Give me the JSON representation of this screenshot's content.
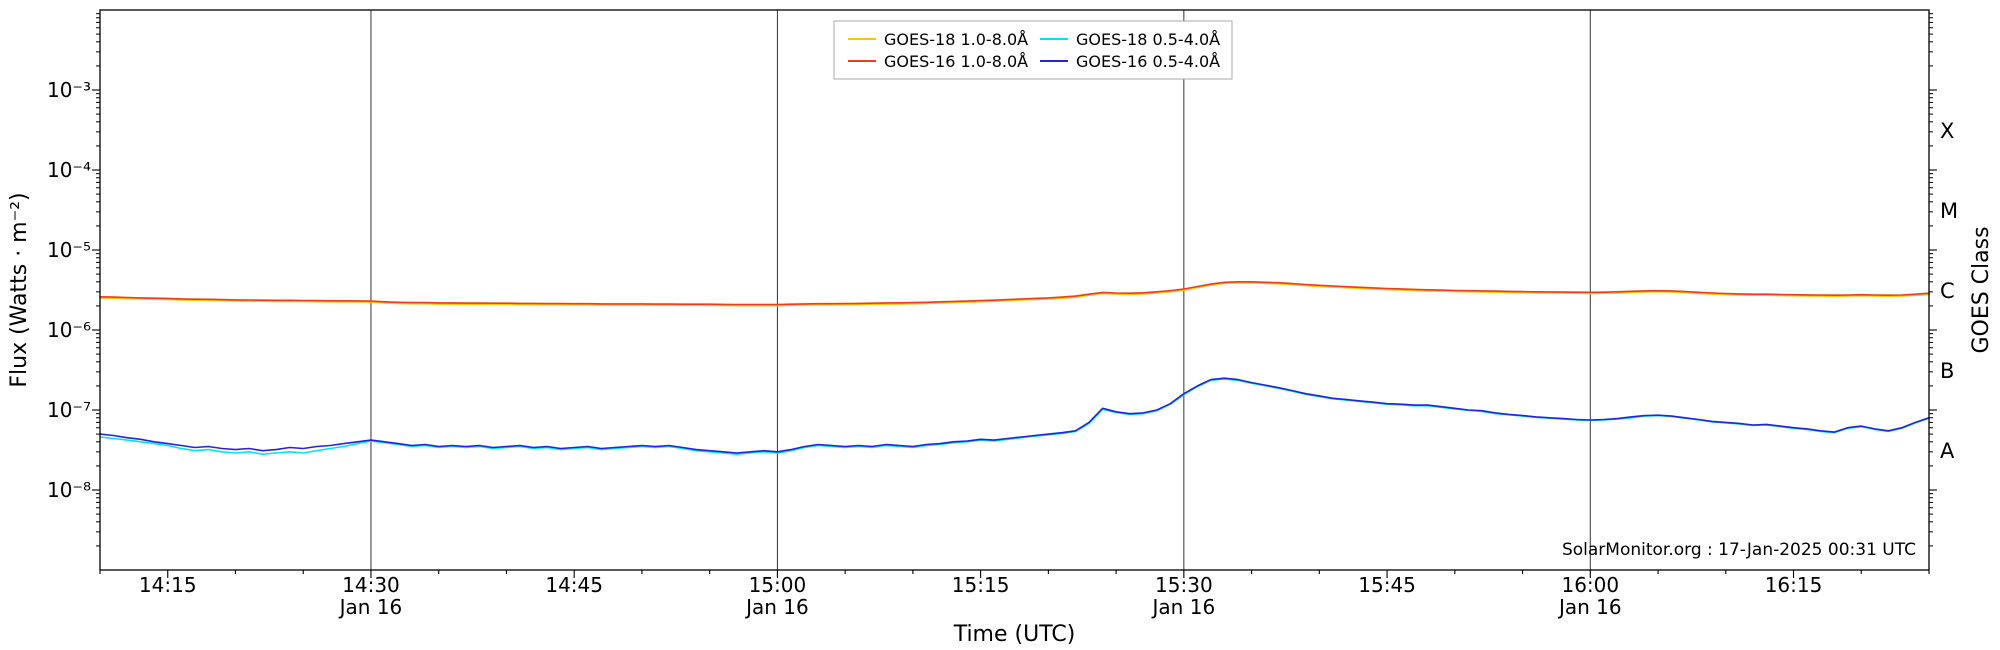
{
  "chart_data": {
    "type": "line",
    "title": "",
    "xlabel": "Time (UTC)",
    "ylabel": "Flux (Watts · m⁻²)",
    "right_axis_label": "GOES Class",
    "watermark": "SolarMonitor.org : 17-Jan-2025 00:31 UTC",
    "x_axis": {
      "start_minutes": 850,
      "end_minutes": 985,
      "minor_tick_step_minutes": 5,
      "gridline_minutes": [
        870,
        900,
        930,
        960
      ],
      "major_ticks": [
        {
          "minutes": 855,
          "label": "14:15",
          "sublabel": ""
        },
        {
          "minutes": 870,
          "label": "14:30",
          "sublabel": "Jan 16"
        },
        {
          "minutes": 885,
          "label": "14:45",
          "sublabel": ""
        },
        {
          "minutes": 900,
          "label": "15:00",
          "sublabel": "Jan 16"
        },
        {
          "minutes": 915,
          "label": "15:15",
          "sublabel": ""
        },
        {
          "minutes": 930,
          "label": "15:30",
          "sublabel": "Jan 16"
        },
        {
          "minutes": 945,
          "label": "15:45",
          "sublabel": ""
        },
        {
          "minutes": 960,
          "label": "16:00",
          "sublabel": "Jan 16"
        },
        {
          "minutes": 975,
          "label": "16:15",
          "sublabel": ""
        }
      ]
    },
    "y_axis": {
      "log_min_exp": -9,
      "log_max_exp": -2,
      "ticks": [
        {
          "exp": -3,
          "label": "10⁻³"
        },
        {
          "exp": -4,
          "label": "10⁻⁴"
        },
        {
          "exp": -5,
          "label": "10⁻⁵"
        },
        {
          "exp": -6,
          "label": "10⁻⁶"
        },
        {
          "exp": -7,
          "label": "10⁻⁷"
        },
        {
          "exp": -8,
          "label": "10⁻⁸"
        }
      ]
    },
    "goes_classes": [
      {
        "label": "X",
        "center_exp": -3.5
      },
      {
        "label": "M",
        "center_exp": -4.5
      },
      {
        "label": "C",
        "center_exp": -5.5
      },
      {
        "label": "B",
        "center_exp": -6.5
      },
      {
        "label": "A",
        "center_exp": -7.5
      }
    ],
    "sample_start_minutes": 850,
    "sample_step_minutes": 1,
    "legend_columns": [
      [
        0,
        2
      ],
      [
        1,
        3
      ]
    ],
    "series": [
      {
        "name": "GOES-18 1.0-8.0Å",
        "color": "#ffc400",
        "scale": 1e-06,
        "values": [
          2.52,
          2.5,
          2.47,
          2.44,
          2.43,
          2.41,
          2.38,
          2.36,
          2.35,
          2.33,
          2.31,
          2.3,
          2.29,
          2.28,
          2.28,
          2.27,
          2.26,
          2.25,
          2.25,
          2.24,
          2.23,
          2.18,
          2.15,
          2.13,
          2.13,
          2.11,
          2.11,
          2.1,
          2.1,
          2.1,
          2.1,
          2.09,
          2.09,
          2.08,
          2.08,
          2.07,
          2.07,
          2.06,
          2.06,
          2.06,
          2.06,
          2.05,
          2.05,
          2.04,
          2.04,
          2.04,
          2.03,
          2.02,
          2.02,
          2.02,
          2.02,
          2.04,
          2.06,
          2.07,
          2.07,
          2.08,
          2.09,
          2.1,
          2.11,
          2.12,
          2.13,
          2.15,
          2.18,
          2.21,
          2.23,
          2.26,
          2.29,
          2.33,
          2.37,
          2.41,
          2.44,
          2.5,
          2.57,
          2.72,
          2.86,
          2.81,
          2.79,
          2.83,
          2.91,
          3.01,
          3.15,
          3.4,
          3.64,
          3.83,
          3.88,
          3.88,
          3.83,
          3.78,
          3.69,
          3.59,
          3.51,
          3.44,
          3.38,
          3.32,
          3.26,
          3.2,
          3.16,
          3.12,
          3.08,
          3.06,
          3.03,
          3.01,
          2.99,
          2.97,
          2.95,
          2.93,
          2.91,
          2.9,
          2.89,
          2.88,
          2.87,
          2.88,
          2.91,
          2.96,
          2.99,
          3.01,
          2.99,
          2.93,
          2.87,
          2.81,
          2.77,
          2.74,
          2.72,
          2.72,
          2.7,
          2.68,
          2.67,
          2.66,
          2.64,
          2.66,
          2.68,
          2.66,
          2.64,
          2.66,
          2.72,
          2.79
        ]
      },
      {
        "name": "GOES-18 0.5-4.0Å",
        "color": "#00e5f6",
        "scale": 1e-08,
        "values": [
          4.6,
          4.4,
          4.2,
          4.0,
          3.8,
          3.6,
          3.3,
          3.1,
          3.2,
          3.0,
          2.9,
          3.0,
          2.8,
          2.9,
          3.0,
          2.9,
          3.1,
          3.3,
          3.5,
          3.8,
          4.1,
          3.9,
          3.7,
          3.5,
          3.6,
          3.4,
          3.5,
          3.4,
          3.5,
          3.3,
          3.4,
          3.5,
          3.3,
          3.4,
          3.2,
          3.3,
          3.4,
          3.2,
          3.3,
          3.4,
          3.5,
          3.4,
          3.5,
          3.3,
          3.1,
          3.0,
          2.9,
          2.8,
          2.9,
          3.0,
          2.9,
          3.1,
          3.4,
          3.6,
          3.5,
          3.4,
          3.5,
          3.4,
          3.6,
          3.5,
          3.4,
          3.6,
          3.7,
          3.9,
          4.0,
          4.2,
          4.1,
          4.3,
          4.5,
          4.7,
          4.9,
          5.1,
          5.4,
          6.8,
          10.2,
          9.3,
          8.8,
          9.0,
          9.8,
          11.8,
          15.6,
          19.6,
          23.5,
          24.5,
          23.5,
          21.6,
          20.1,
          18.6,
          17.2,
          15.7,
          14.7,
          13.8,
          13.3,
          12.8,
          12.3,
          11.8,
          11.6,
          11.3,
          11.3,
          10.8,
          10.3,
          9.9,
          9.6,
          9.0,
          8.7,
          8.4,
          8.1,
          7.9,
          7.7,
          7.5,
          7.4,
          7.5,
          7.7,
          8.0,
          8.4,
          8.5,
          8.3,
          7.9,
          7.5,
          7.1,
          6.9,
          6.7,
          6.4,
          6.5,
          6.2,
          5.9,
          5.7,
          5.4,
          5.2,
          5.9,
          6.2,
          5.7,
          5.4,
          5.9,
          6.9,
          7.9
        ]
      },
      {
        "name": "GOES-16 1.0-8.0Å",
        "color": "#ee3c1e",
        "scale": 1e-06,
        "values": [
          2.6,
          2.58,
          2.55,
          2.52,
          2.5,
          2.48,
          2.45,
          2.43,
          2.42,
          2.4,
          2.38,
          2.37,
          2.36,
          2.35,
          2.35,
          2.34,
          2.33,
          2.32,
          2.32,
          2.31,
          2.3,
          2.25,
          2.22,
          2.2,
          2.2,
          2.18,
          2.18,
          2.17,
          2.17,
          2.16,
          2.16,
          2.15,
          2.15,
          2.14,
          2.14,
          2.13,
          2.13,
          2.12,
          2.12,
          2.12,
          2.12,
          2.11,
          2.11,
          2.1,
          2.1,
          2.1,
          2.09,
          2.08,
          2.08,
          2.08,
          2.08,
          2.1,
          2.12,
          2.13,
          2.13,
          2.14,
          2.15,
          2.16,
          2.18,
          2.19,
          2.2,
          2.22,
          2.25,
          2.28,
          2.3,
          2.33,
          2.36,
          2.4,
          2.44,
          2.48,
          2.52,
          2.58,
          2.65,
          2.8,
          2.95,
          2.9,
          2.88,
          2.92,
          3.0,
          3.1,
          3.25,
          3.5,
          3.75,
          3.95,
          4.0,
          4.0,
          3.95,
          3.9,
          3.8,
          3.7,
          3.62,
          3.55,
          3.48,
          3.42,
          3.36,
          3.3,
          3.26,
          3.22,
          3.18,
          3.15,
          3.12,
          3.1,
          3.08,
          3.06,
          3.04,
          3.02,
          3.0,
          2.99,
          2.98,
          2.97,
          2.96,
          2.97,
          3.0,
          3.05,
          3.08,
          3.1,
          3.08,
          3.02,
          2.96,
          2.9,
          2.86,
          2.83,
          2.8,
          2.8,
          2.78,
          2.76,
          2.75,
          2.74,
          2.72,
          2.74,
          2.76,
          2.74,
          2.72,
          2.74,
          2.8,
          2.88
        ]
      },
      {
        "name": "GOES-16 0.5-4.0Å",
        "color": "#2424dd",
        "scale": 1e-08,
        "values": [
          5.0,
          4.8,
          4.5,
          4.3,
          4.0,
          3.8,
          3.6,
          3.4,
          3.5,
          3.3,
          3.2,
          3.3,
          3.1,
          3.2,
          3.4,
          3.3,
          3.5,
          3.6,
          3.8,
          4.0,
          4.2,
          4.0,
          3.8,
          3.6,
          3.7,
          3.5,
          3.6,
          3.5,
          3.6,
          3.4,
          3.5,
          3.6,
          3.4,
          3.5,
          3.3,
          3.4,
          3.5,
          3.3,
          3.4,
          3.5,
          3.6,
          3.5,
          3.6,
          3.4,
          3.2,
          3.1,
          3.0,
          2.9,
          3.0,
          3.1,
          3.0,
          3.2,
          3.5,
          3.7,
          3.6,
          3.5,
          3.6,
          3.5,
          3.7,
          3.6,
          3.5,
          3.7,
          3.8,
          4.0,
          4.1,
          4.3,
          4.2,
          4.4,
          4.6,
          4.8,
          5.0,
          5.2,
          5.5,
          7.0,
          10.5,
          9.5,
          9.0,
          9.2,
          10.0,
          12.0,
          16.0,
          20.0,
          24.0,
          25.0,
          24.0,
          22.0,
          20.5,
          19.0,
          17.5,
          16.0,
          15.0,
          14.0,
          13.5,
          13.0,
          12.5,
          12.0,
          11.8,
          11.5,
          11.5,
          11.0,
          10.5,
          10.0,
          9.8,
          9.2,
          8.8,
          8.5,
          8.2,
          8.0,
          7.8,
          7.6,
          7.5,
          7.6,
          7.8,
          8.2,
          8.5,
          8.6,
          8.4,
          8.0,
          7.6,
          7.2,
          7.0,
          6.8,
          6.5,
          6.6,
          6.3,
          6.0,
          5.8,
          5.5,
          5.3,
          6.0,
          6.3,
          5.8,
          5.5,
          6.0,
          7.0,
          8.0
        ]
      }
    ],
    "style": {
      "gridline_color": "#333333",
      "frame_color": "#000000",
      "legend_border_color": "#aaaaaa",
      "background_color": "#ffffff"
    }
  }
}
